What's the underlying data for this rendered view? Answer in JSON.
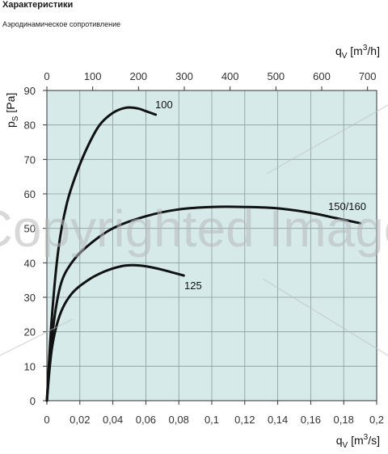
{
  "header": {
    "title": "Характеристики",
    "subtitle": "Аэродинамическое сопротивление"
  },
  "watermark": "Copyrighted Image",
  "chart_data": {
    "type": "line",
    "title": "",
    "xlabel": {
      "main": "q",
      "sub": "V",
      "unit_pre": "[m",
      "unit_sup": "3",
      "unit_post": "/s]"
    },
    "x2label": {
      "main": "q",
      "sub": "V",
      "unit_pre": "[m",
      "unit_sup": "3",
      "unit_post": "/h]"
    },
    "ylabel": {
      "main": "p",
      "sub": "S",
      "unit": "[Pa]"
    },
    "xlim": [
      0,
      0.2
    ],
    "x2lim": [
      0,
      720
    ],
    "ylim": [
      0,
      90
    ],
    "x_ticks": [
      0,
      0.02,
      0.04,
      0.06,
      0.08,
      0.1,
      0.12,
      0.14,
      0.16,
      0.18,
      0.2
    ],
    "x_tick_labels": [
      "0",
      "0,02",
      "0,04",
      "0,06",
      "0,08",
      "0,1",
      "0,12",
      "0,14",
      "0,16",
      "0,18",
      "0,2"
    ],
    "x2_ticks": [
      0,
      100,
      200,
      300,
      400,
      500,
      600,
      700
    ],
    "x2_tick_labels": [
      "0",
      "100",
      "200",
      "300",
      "400",
      "500",
      "600",
      "700"
    ],
    "y_ticks": [
      0,
      10,
      20,
      30,
      40,
      50,
      60,
      70,
      80,
      90
    ],
    "y_tick_labels": [
      "0",
      "10",
      "20",
      "30",
      "40",
      "50",
      "60",
      "70",
      "80",
      "90"
    ],
    "grid": true,
    "colors": {
      "plot_bg": "#d6eaea",
      "grid": "#8a9a9a",
      "curve": "#111111"
    },
    "series": [
      {
        "name": "100",
        "x": [
          0.0,
          0.003,
          0.007,
          0.012,
          0.018,
          0.025,
          0.032,
          0.04,
          0.048,
          0.055,
          0.06,
          0.066
        ],
        "y": [
          0,
          24,
          44,
          57,
          66,
          74,
          80,
          83.5,
          85,
          84.8,
          84,
          83
        ]
      },
      {
        "name": "150/160",
        "x": [
          0.0,
          0.003,
          0.008,
          0.015,
          0.025,
          0.04,
          0.06,
          0.08,
          0.1,
          0.12,
          0.14,
          0.16,
          0.175,
          0.19
        ],
        "y": [
          0,
          18,
          33,
          40,
          45,
          50,
          53.5,
          55.5,
          56.2,
          56.2,
          55.8,
          54.5,
          53,
          51.5
        ]
      },
      {
        "name": "125",
        "x": [
          0.0,
          0.003,
          0.008,
          0.015,
          0.025,
          0.035,
          0.045,
          0.052,
          0.06,
          0.07,
          0.083
        ],
        "y": [
          0,
          15,
          25,
          31,
          35,
          37.5,
          39,
          39.3,
          39,
          38,
          36.3
        ]
      }
    ]
  }
}
